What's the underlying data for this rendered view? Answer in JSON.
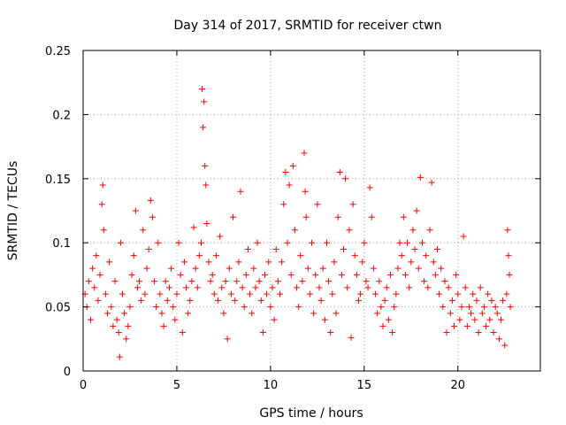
{
  "chart_data": {
    "type": "scatter",
    "title": "Day 314 of 2017, SRMTID for receiver ctwn",
    "xlabel": "GPS time / hours",
    "ylabel": "SRMTID / TECUs",
    "xlim": [
      0,
      24.4
    ],
    "ylim": [
      0,
      0.25
    ],
    "xticks": [
      0,
      5,
      10,
      15,
      20
    ],
    "yticks": [
      0,
      0.05,
      0.1,
      0.15,
      0.2,
      0.25
    ],
    "xtick_labels": [
      "0",
      "5",
      "10",
      "15",
      "20"
    ],
    "ytick_labels": [
      "0",
      "0.05",
      "0.1",
      "0.15",
      "0.2",
      "0.25"
    ],
    "grid": true,
    "marker": "+",
    "series": [
      {
        "name": "SRMTID",
        "color": "#ff0000",
        "points": [
          [
            0.1,
            0.06
          ],
          [
            0.2,
            0.05
          ],
          [
            0.3,
            0.07
          ],
          [
            0.4,
            0.04
          ],
          [
            0.5,
            0.08
          ],
          [
            0.6,
            0.065
          ],
          [
            0.7,
            0.09
          ],
          [
            0.8,
            0.055
          ],
          [
            0.9,
            0.075
          ],
          [
            1.0,
            0.13
          ],
          [
            1.05,
            0.145
          ],
          [
            1.1,
            0.11
          ],
          [
            1.2,
            0.06
          ],
          [
            1.3,
            0.045
          ],
          [
            1.4,
            0.085
          ],
          [
            1.5,
            0.05
          ],
          [
            1.6,
            0.035
          ],
          [
            1.7,
            0.07
          ],
          [
            1.8,
            0.04
          ],
          [
            1.9,
            0.03
          ],
          [
            1.95,
            0.011
          ],
          [
            2.0,
            0.1
          ],
          [
            2.1,
            0.06
          ],
          [
            2.2,
            0.045
          ],
          [
            2.3,
            0.025
          ],
          [
            2.4,
            0.035
          ],
          [
            2.5,
            0.05
          ],
          [
            2.6,
            0.075
          ],
          [
            2.7,
            0.09
          ],
          [
            2.8,
            0.125
          ],
          [
            2.9,
            0.065
          ],
          [
            3.0,
            0.07
          ],
          [
            3.1,
            0.055
          ],
          [
            3.2,
            0.11
          ],
          [
            3.3,
            0.06
          ],
          [
            3.4,
            0.08
          ],
          [
            3.5,
            0.095
          ],
          [
            3.6,
            0.133
          ],
          [
            3.7,
            0.12
          ],
          [
            3.8,
            0.07
          ],
          [
            3.9,
            0.05
          ],
          [
            4.0,
            0.1
          ],
          [
            4.1,
            0.06
          ],
          [
            4.2,
            0.045
          ],
          [
            4.3,
            0.035
          ],
          [
            4.4,
            0.07
          ],
          [
            4.5,
            0.055
          ],
          [
            4.6,
            0.065
          ],
          [
            4.7,
            0.08
          ],
          [
            4.8,
            0.05
          ],
          [
            4.9,
            0.04
          ],
          [
            5.0,
            0.06
          ],
          [
            5.1,
            0.1
          ],
          [
            5.2,
            0.075
          ],
          [
            5.3,
            0.03
          ],
          [
            5.4,
            0.085
          ],
          [
            5.5,
            0.065
          ],
          [
            5.6,
            0.045
          ],
          [
            5.7,
            0.055
          ],
          [
            5.8,
            0.07
          ],
          [
            5.9,
            0.112
          ],
          [
            6.0,
            0.08
          ],
          [
            6.1,
            0.065
          ],
          [
            6.2,
            0.09
          ],
          [
            6.3,
            0.1
          ],
          [
            6.35,
            0.22
          ],
          [
            6.4,
            0.19
          ],
          [
            6.45,
            0.21
          ],
          [
            6.5,
            0.16
          ],
          [
            6.55,
            0.145
          ],
          [
            6.6,
            0.115
          ],
          [
            6.7,
            0.085
          ],
          [
            6.8,
            0.07
          ],
          [
            6.9,
            0.075
          ],
          [
            7.0,
            0.06
          ],
          [
            7.1,
            0.09
          ],
          [
            7.2,
            0.055
          ],
          [
            7.3,
            0.105
          ],
          [
            7.4,
            0.065
          ],
          [
            7.5,
            0.045
          ],
          [
            7.6,
            0.07
          ],
          [
            7.7,
            0.025
          ],
          [
            7.8,
            0.08
          ],
          [
            7.9,
            0.06
          ],
          [
            8.0,
            0.12
          ],
          [
            8.1,
            0.055
          ],
          [
            8.2,
            0.07
          ],
          [
            8.3,
            0.085
          ],
          [
            8.4,
            0.14
          ],
          [
            8.5,
            0.065
          ],
          [
            8.6,
            0.05
          ],
          [
            8.7,
            0.075
          ],
          [
            8.8,
            0.095
          ],
          [
            8.9,
            0.06
          ],
          [
            9.0,
            0.045
          ],
          [
            9.1,
            0.08
          ],
          [
            9.2,
            0.065
          ],
          [
            9.3,
            0.1
          ],
          [
            9.4,
            0.07
          ],
          [
            9.5,
            0.055
          ],
          [
            9.6,
            0.03
          ],
          [
            9.7,
            0.075
          ],
          [
            9.8,
            0.06
          ],
          [
            9.9,
            0.085
          ],
          [
            10.0,
            0.05
          ],
          [
            10.1,
            0.065
          ],
          [
            10.2,
            0.04
          ],
          [
            10.3,
            0.095
          ],
          [
            10.4,
            0.07
          ],
          [
            10.5,
            0.06
          ],
          [
            10.6,
            0.085
          ],
          [
            10.7,
            0.13
          ],
          [
            10.8,
            0.155
          ],
          [
            10.9,
            0.1
          ],
          [
            11.0,
            0.145
          ],
          [
            11.1,
            0.075
          ],
          [
            11.2,
            0.16
          ],
          [
            11.3,
            0.11
          ],
          [
            11.4,
            0.065
          ],
          [
            11.5,
            0.05
          ],
          [
            11.6,
            0.09
          ],
          [
            11.7,
            0.07
          ],
          [
            11.8,
            0.17
          ],
          [
            11.85,
            0.14
          ],
          [
            11.9,
            0.12
          ],
          [
            12.0,
            0.08
          ],
          [
            12.1,
            0.06
          ],
          [
            12.2,
            0.1
          ],
          [
            12.3,
            0.045
          ],
          [
            12.4,
            0.075
          ],
          [
            12.5,
            0.13
          ],
          [
            12.6,
            0.065
          ],
          [
            12.7,
            0.055
          ],
          [
            12.8,
            0.08
          ],
          [
            12.9,
            0.04
          ],
          [
            13.0,
            0.1
          ],
          [
            13.1,
            0.07
          ],
          [
            13.2,
            0.03
          ],
          [
            13.3,
            0.06
          ],
          [
            13.4,
            0.085
          ],
          [
            13.5,
            0.045
          ],
          [
            13.6,
            0.12
          ],
          [
            13.7,
            0.155
          ],
          [
            13.8,
            0.075
          ],
          [
            13.9,
            0.095
          ],
          [
            14.0,
            0.15
          ],
          [
            14.1,
            0.065
          ],
          [
            14.2,
            0.11
          ],
          [
            14.3,
            0.026
          ],
          [
            14.4,
            0.13
          ],
          [
            14.5,
            0.09
          ],
          [
            14.6,
            0.075
          ],
          [
            14.7,
            0.055
          ],
          [
            14.8,
            0.06
          ],
          [
            14.9,
            0.085
          ],
          [
            15.0,
            0.1
          ],
          [
            15.1,
            0.07
          ],
          [
            15.2,
            0.065
          ],
          [
            15.3,
            0.143
          ],
          [
            15.4,
            0.12
          ],
          [
            15.5,
            0.08
          ],
          [
            15.6,
            0.06
          ],
          [
            15.7,
            0.045
          ],
          [
            15.8,
            0.07
          ],
          [
            15.9,
            0.05
          ],
          [
            16.0,
            0.035
          ],
          [
            16.1,
            0.055
          ],
          [
            16.2,
            0.065
          ],
          [
            16.3,
            0.04
          ],
          [
            16.4,
            0.075
          ],
          [
            16.5,
            0.03
          ],
          [
            16.6,
            0.05
          ],
          [
            16.7,
            0.06
          ],
          [
            16.8,
            0.08
          ],
          [
            16.9,
            0.1
          ],
          [
            17.0,
            0.09
          ],
          [
            17.1,
            0.12
          ],
          [
            17.2,
            0.075
          ],
          [
            17.3,
            0.1
          ],
          [
            17.4,
            0.065
          ],
          [
            17.5,
            0.085
          ],
          [
            17.6,
            0.11
          ],
          [
            17.7,
            0.095
          ],
          [
            17.8,
            0.125
          ],
          [
            17.9,
            0.08
          ],
          [
            18.0,
            0.151
          ],
          [
            18.1,
            0.1
          ],
          [
            18.2,
            0.07
          ],
          [
            18.3,
            0.09
          ],
          [
            18.4,
            0.065
          ],
          [
            18.5,
            0.11
          ],
          [
            18.6,
            0.147
          ],
          [
            18.7,
            0.085
          ],
          [
            18.8,
            0.075
          ],
          [
            18.9,
            0.095
          ],
          [
            19.0,
            0.06
          ],
          [
            19.1,
            0.08
          ],
          [
            19.2,
            0.05
          ],
          [
            19.3,
            0.07
          ],
          [
            19.4,
            0.03
          ],
          [
            19.5,
            0.065
          ],
          [
            19.6,
            0.045
          ],
          [
            19.7,
            0.055
          ],
          [
            19.8,
            0.035
          ],
          [
            19.9,
            0.075
          ],
          [
            20.0,
            0.06
          ],
          [
            20.1,
            0.04
          ],
          [
            20.2,
            0.05
          ],
          [
            20.3,
            0.105
          ],
          [
            20.4,
            0.065
          ],
          [
            20.5,
            0.035
          ],
          [
            20.6,
            0.05
          ],
          [
            20.7,
            0.045
          ],
          [
            20.8,
            0.06
          ],
          [
            20.9,
            0.04
          ],
          [
            21.0,
            0.055
          ],
          [
            21.1,
            0.03
          ],
          [
            21.2,
            0.065
          ],
          [
            21.3,
            0.045
          ],
          [
            21.4,
            0.05
          ],
          [
            21.5,
            0.035
          ],
          [
            21.6,
            0.06
          ],
          [
            21.7,
            0.04
          ],
          [
            21.8,
            0.055
          ],
          [
            21.9,
            0.03
          ],
          [
            22.0,
            0.05
          ],
          [
            22.1,
            0.045
          ],
          [
            22.2,
            0.025
          ],
          [
            22.3,
            0.04
          ],
          [
            22.4,
            0.055
          ],
          [
            22.5,
            0.02
          ],
          [
            22.6,
            0.06
          ],
          [
            22.65,
            0.11
          ],
          [
            22.7,
            0.09
          ],
          [
            22.75,
            0.075
          ],
          [
            22.8,
            0.05
          ]
        ]
      }
    ]
  }
}
